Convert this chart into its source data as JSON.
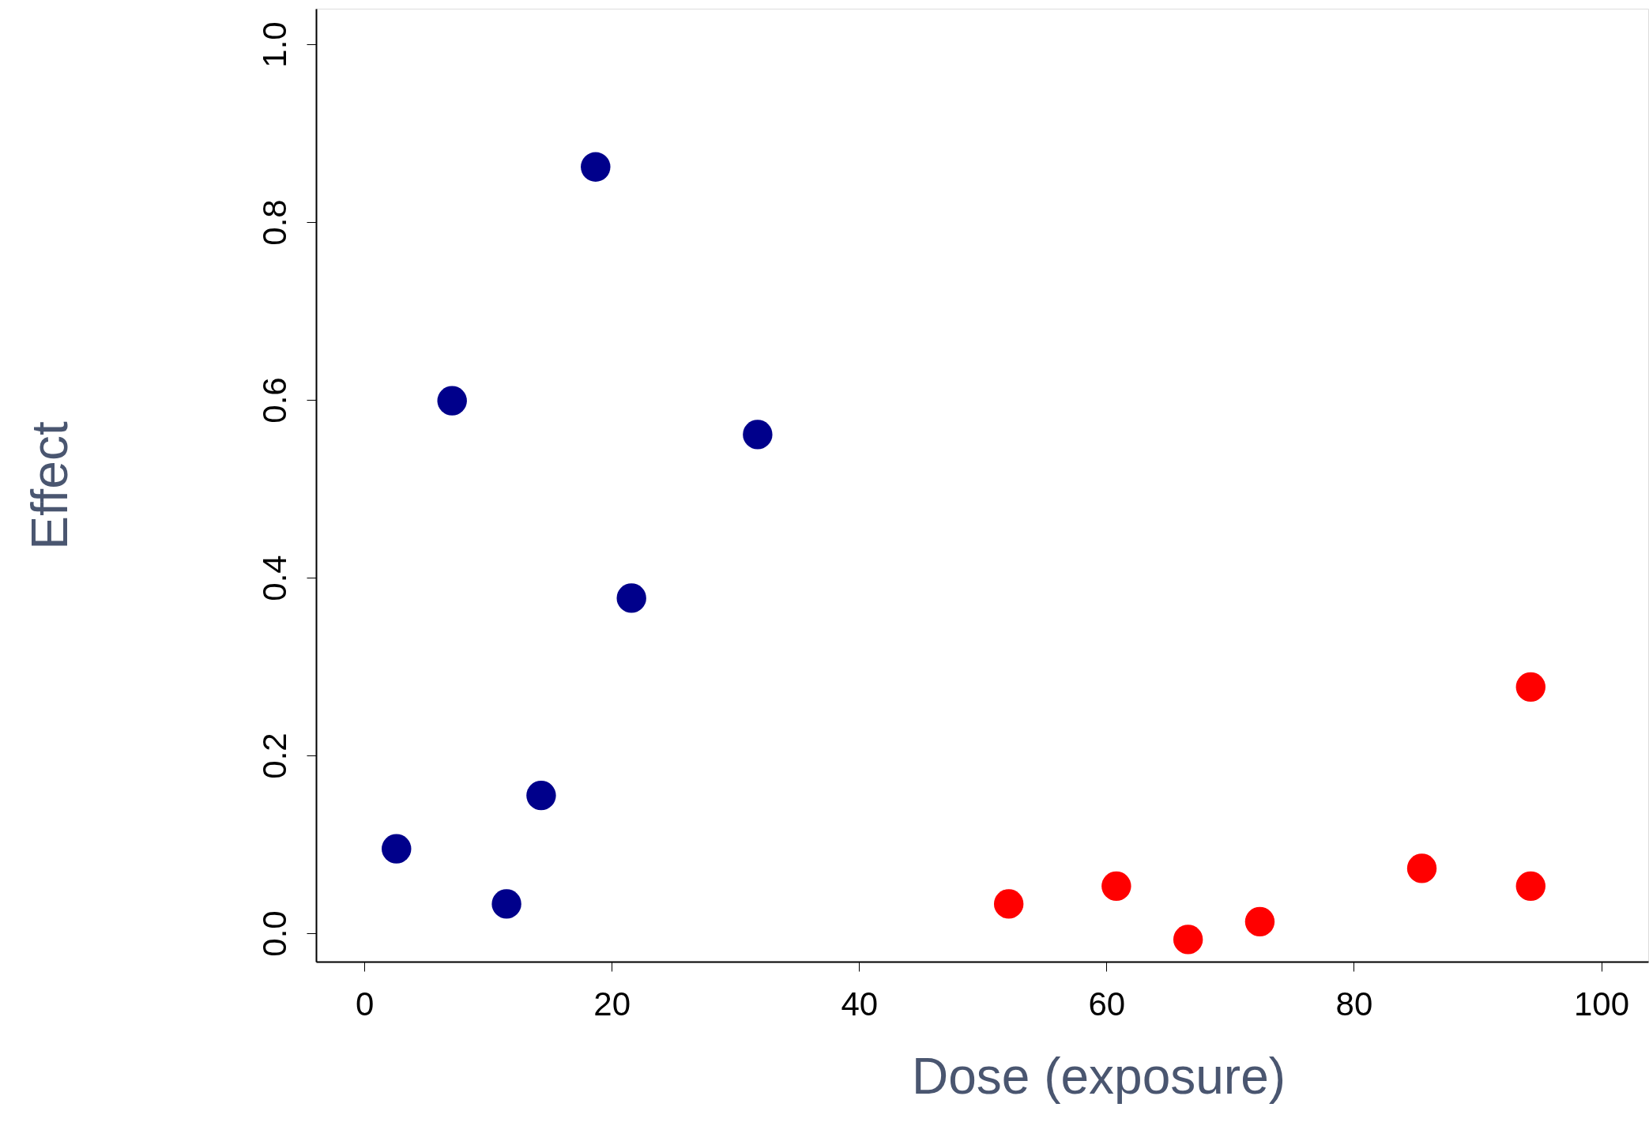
{
  "chart_data": {
    "type": "scatter",
    "xlabel": "Dose (exposure)",
    "ylabel": "Effect",
    "xlim": [
      -3.9,
      103.8
    ],
    "ylim": [
      -0.032,
      1.04
    ],
    "xticks": [
      0,
      20,
      40,
      60,
      80,
      100
    ],
    "yticks": [
      {
        "value": 0,
        "label": "0.0"
      },
      0.2,
      0.4,
      0.6,
      0.8,
      {
        "value": 1,
        "label": "1.0"
      }
    ],
    "grid": false,
    "marker": "circle",
    "series": [
      {
        "color": "#00008b",
        "x": [
          2.6,
          7.1,
          11.5,
          14.3,
          18.7,
          21.6,
          31.8
        ],
        "values": [
          0.095,
          0.599,
          0.033,
          0.155,
          0.862,
          0.377,
          0.561
        ]
      },
      {
        "color": "#ff0000",
        "x": [
          52.1,
          60.8,
          66.6,
          72.4,
          85.5,
          94.3,
          94.3
        ],
        "values": [
          0.033,
          0.053,
          -0.007,
          0.013,
          0.073,
          0.053,
          0.277
        ]
      }
    ]
  }
}
